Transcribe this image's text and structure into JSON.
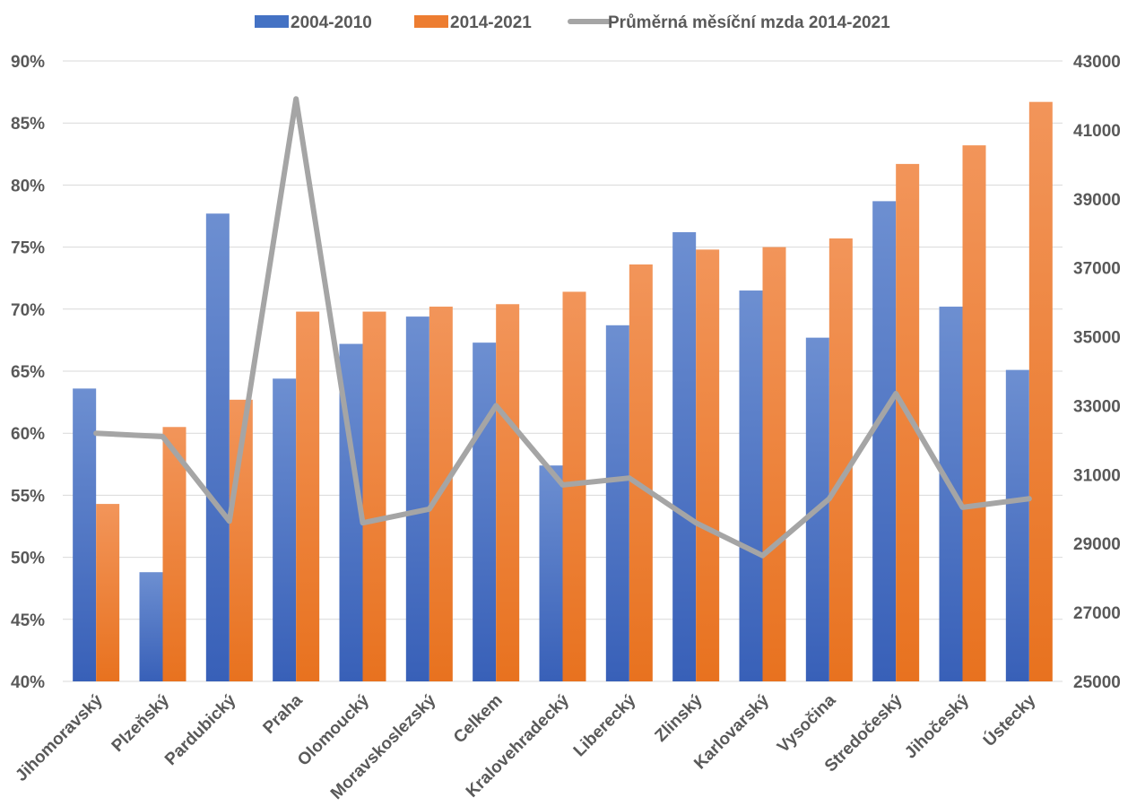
{
  "chart_data": {
    "type": "bar",
    "categories": [
      "Jihomoravský",
      "Plzeňský",
      "Pardubický",
      "Praha",
      "Olomoucký",
      "Moravskoslezský",
      "Celkem",
      "Kralovehradecký",
      "Liberecký",
      "Zlinský",
      "Karlovarský",
      "Vysočina",
      "Stredočeský",
      "Jihočeský",
      "Ústecky"
    ],
    "series": [
      {
        "name": "2004-2010",
        "type": "bar",
        "axis": "left",
        "color": "#4472c4",
        "values": [
          63.6,
          48.8,
          77.7,
          64.4,
          67.2,
          69.4,
          67.3,
          57.4,
          68.7,
          76.2,
          71.5,
          67.7,
          78.7,
          70.2,
          65.1
        ]
      },
      {
        "name": "2014-2021",
        "type": "bar",
        "axis": "left",
        "color": "#ed7d31",
        "values": [
          54.3,
          60.5,
          62.7,
          69.8,
          69.8,
          70.2,
          70.4,
          71.4,
          73.6,
          74.8,
          75.0,
          75.7,
          81.7,
          83.2,
          86.7
        ]
      },
      {
        "name": "Průměrná měsíční mzda 2014-2021",
        "type": "line",
        "axis": "right",
        "color": "#a5a5a5",
        "values": [
          32200,
          32100,
          29650,
          41900,
          29600,
          30000,
          33000,
          30700,
          30900,
          29600,
          28650,
          30300,
          33350,
          30050,
          30300
        ]
      }
    ],
    "y_left": {
      "min": 40,
      "max": 90,
      "step": 5,
      "tick_labels": [
        "40%",
        "45%",
        "50%",
        "55%",
        "60%",
        "65%",
        "70%",
        "75%",
        "80%",
        "85%",
        "90%"
      ]
    },
    "y_right": {
      "min": 25000,
      "max": 43000,
      "step": 2000,
      "tick_labels": [
        "25000",
        "27000",
        "29000",
        "31000",
        "33000",
        "35000",
        "37000",
        "39000",
        "41000",
        "43000"
      ]
    },
    "legend": "top-center",
    "grid": true
  }
}
